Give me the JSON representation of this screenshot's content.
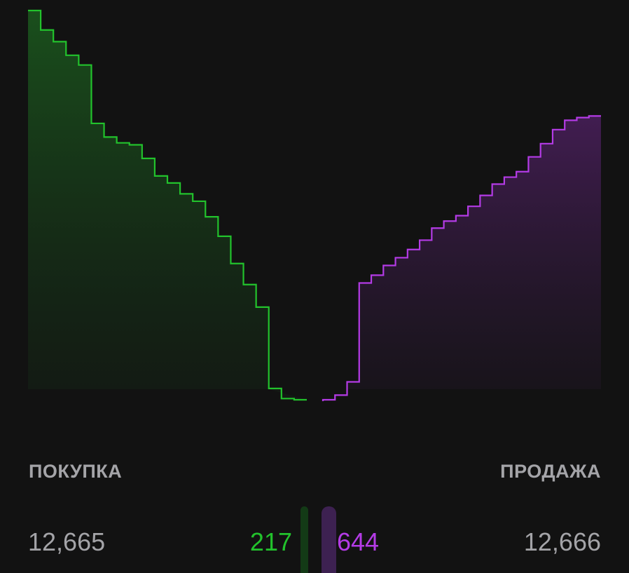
{
  "colors": {
    "background": "#121212",
    "bid": "#22c22c",
    "ask": "#b43be6",
    "label": "#a4a4a8"
  },
  "chart_data": {
    "type": "area",
    "step": true,
    "grid": false,
    "bids": {
      "name": "",
      "depth": [
        100,
        95,
        92,
        88.5,
        86,
        71,
        67.5,
        66,
        65.5,
        62,
        57.5,
        55.7,
        52.9,
        51,
        47,
        42,
        35,
        29.6,
        23.8,
        2.9,
        0.3,
        0
      ]
    },
    "asks": {
      "name": "",
      "depth": [
        0,
        1.2,
        4.6,
        30,
        32,
        34.5,
        36.5,
        38.6,
        41,
        44.1,
        45.9,
        47.3,
        49.7,
        52.5,
        55.4,
        57.2,
        58.6,
        62.4,
        65.8,
        69.4,
        71.8,
        72.5,
        72.9
      ]
    },
    "ylim": [
      0,
      100
    ]
  },
  "footer": {
    "bid_label": "ПОКУПКА",
    "ask_label": "ПРОДАЖА",
    "bid_price": "12,665",
    "ask_price": "12,666",
    "bid_qty": "217",
    "ask_qty": "644",
    "bid_share": 0.252,
    "ask_share": 0.748
  }
}
